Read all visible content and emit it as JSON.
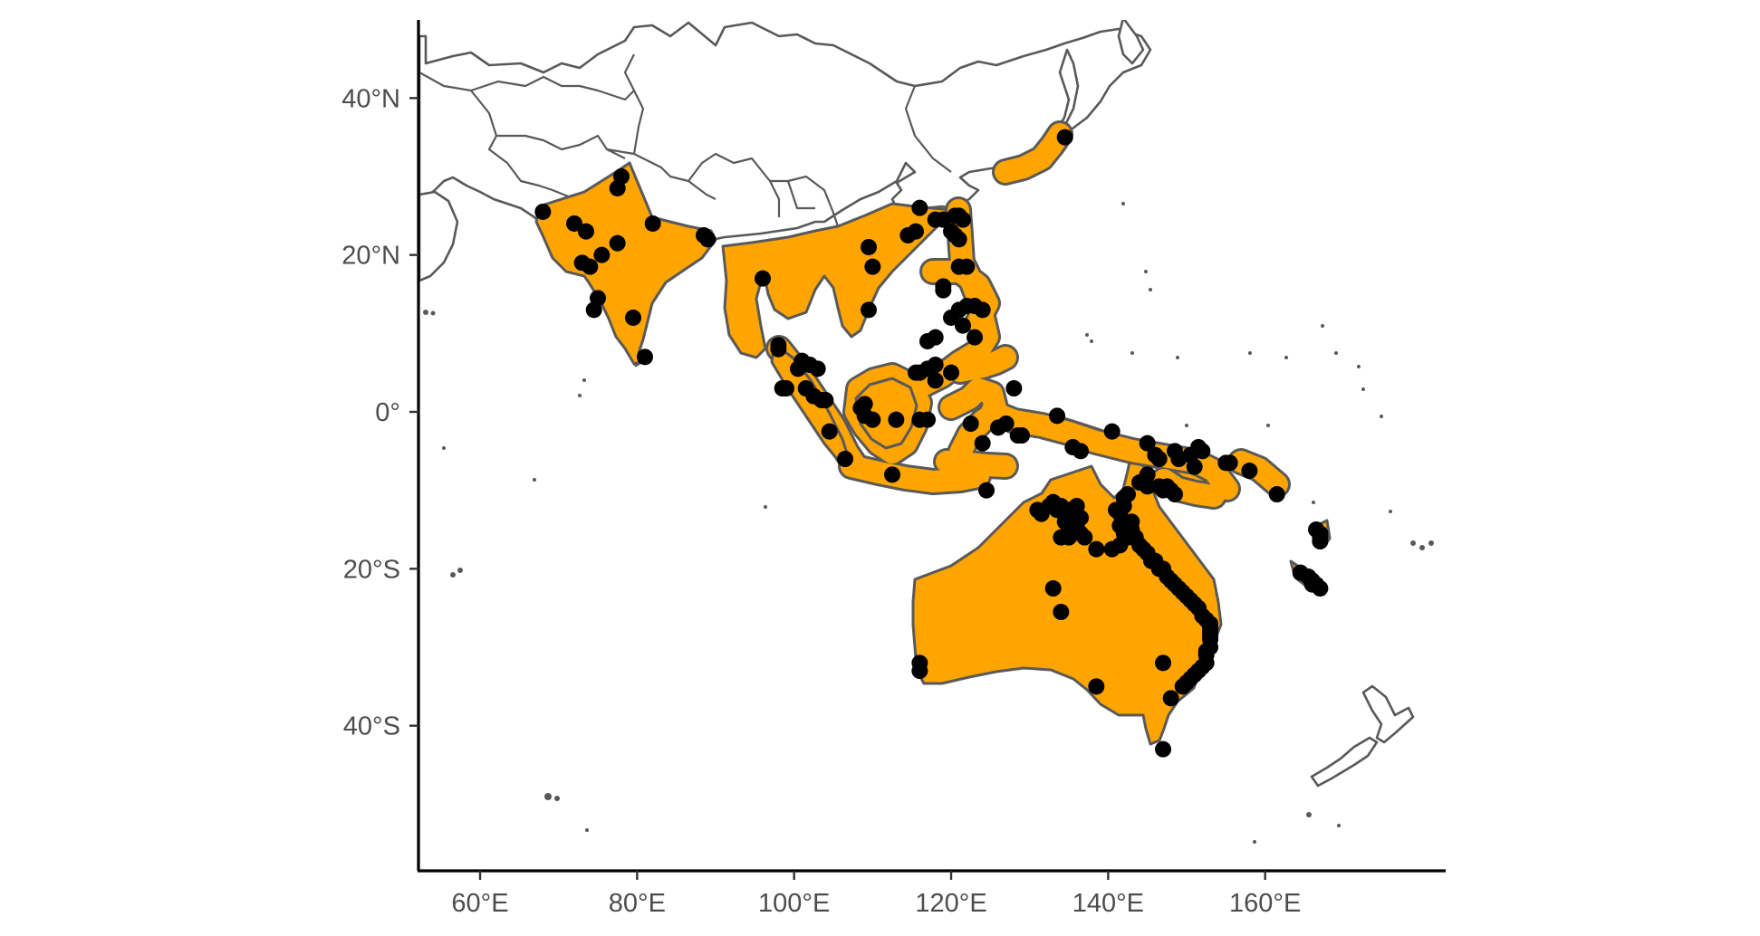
{
  "map": {
    "type": "species-range-map",
    "x_axis": {
      "ticks": [
        {
          "lon": 60,
          "label": "60°E"
        },
        {
          "lon": 80,
          "label": "80°E"
        },
        {
          "lon": 100,
          "label": "100°E"
        },
        {
          "lon": 120,
          "label": "120°E"
        },
        {
          "lon": 140,
          "label": "140°E"
        },
        {
          "lon": 160,
          "label": "160°E"
        }
      ],
      "range": [
        52.5,
        180
      ]
    },
    "y_axis": {
      "ticks": [
        {
          "lat": 40,
          "label": "40°N"
        },
        {
          "lat": 20,
          "label": "20°N"
        },
        {
          "lat": 0,
          "label": "0°"
        },
        {
          "lat": -20,
          "label": "20°S"
        },
        {
          "lat": -40,
          "label": "40°S"
        }
      ],
      "range": [
        -58,
        50
      ]
    },
    "colors": {
      "range_fill": "#FFA500",
      "outline": "#595959",
      "points": "#000000",
      "land": "#FFFFFF"
    },
    "occurrences": [
      [
        68,
        25.5
      ],
      [
        72,
        24
      ],
      [
        73.5,
        23
      ],
      [
        77.5,
        28.5
      ],
      [
        78,
        30
      ],
      [
        77.5,
        21.5
      ],
      [
        75.5,
        20
      ],
      [
        73,
        19
      ],
      [
        74,
        18.5
      ],
      [
        75,
        14.5
      ],
      [
        74.5,
        13
      ],
      [
        79.5,
        12
      ],
      [
        81,
        7
      ],
      [
        82,
        24
      ],
      [
        88.5,
        22.5
      ],
      [
        89,
        22
      ],
      [
        96,
        17
      ],
      [
        109.5,
        21
      ],
      [
        110,
        18.5
      ],
      [
        109.5,
        13
      ],
      [
        114.5,
        22.5
      ],
      [
        115.5,
        23
      ],
      [
        116,
        26
      ],
      [
        118,
        24.5
      ],
      [
        119,
        24.5
      ],
      [
        120,
        23
      ],
      [
        120.5,
        25
      ],
      [
        121,
        25
      ],
      [
        121.5,
        24.5
      ],
      [
        120.5,
        22.5
      ],
      [
        121,
        22
      ],
      [
        121,
        18.5
      ],
      [
        122,
        18.5
      ],
      [
        119,
        16
      ],
      [
        119,
        15.5
      ],
      [
        121,
        13
      ],
      [
        122,
        13.5
      ],
      [
        123,
        13.5
      ],
      [
        124,
        13
      ],
      [
        120,
        12
      ],
      [
        121.5,
        11
      ],
      [
        123,
        9.5
      ],
      [
        117,
        9
      ],
      [
        118,
        9.5
      ],
      [
        118,
        6
      ],
      [
        117,
        5.5
      ],
      [
        115.5,
        5
      ],
      [
        116,
        5
      ],
      [
        118,
        4
      ],
      [
        120,
        5
      ],
      [
        134.5,
        35
      ],
      [
        98,
        8.5
      ],
      [
        98,
        8
      ],
      [
        101,
        6.5
      ],
      [
        102,
        6
      ],
      [
        103,
        5.5
      ],
      [
        100.5,
        5.5
      ],
      [
        101.5,
        3
      ],
      [
        98.5,
        3
      ],
      [
        99,
        3
      ],
      [
        102.5,
        2
      ],
      [
        103.5,
        1.5
      ],
      [
        104,
        1.5
      ],
      [
        108.5,
        0.5
      ],
      [
        109,
        1
      ],
      [
        110,
        -1
      ],
      [
        109,
        -0.5
      ],
      [
        113,
        -1
      ],
      [
        116,
        -1
      ],
      [
        117,
        -1
      ],
      [
        104.5,
        -2.5
      ],
      [
        106.5,
        -6
      ],
      [
        112.5,
        -8
      ],
      [
        122.5,
        -1.5
      ],
      [
        124.5,
        -10
      ],
      [
        128,
        3
      ],
      [
        129,
        -3
      ],
      [
        128.5,
        -3
      ],
      [
        126,
        -2
      ],
      [
        124,
        -4
      ],
      [
        127,
        -1.5
      ],
      [
        133.5,
        -0.5
      ],
      [
        136.5,
        -5
      ],
      [
        135.5,
        -4.5
      ],
      [
        140.5,
        -2.5
      ],
      [
        145,
        -4
      ],
      [
        146,
        -5.5
      ],
      [
        146.5,
        -6
      ],
      [
        149,
        -6
      ],
      [
        148.5,
        -5
      ],
      [
        150.5,
        -5.5
      ],
      [
        151.5,
        -4.5
      ],
      [
        152,
        -5
      ],
      [
        145,
        -8
      ],
      [
        144,
        -9
      ],
      [
        146.5,
        -9.5
      ],
      [
        147.5,
        -9.5
      ],
      [
        148,
        -10
      ],
      [
        148.5,
        -10.5
      ],
      [
        147,
        -10
      ],
      [
        151,
        -7
      ],
      [
        155,
        -6.5
      ],
      [
        155.5,
        -6.5
      ],
      [
        158,
        -7.5
      ],
      [
        161.5,
        -10.5
      ],
      [
        131,
        -12.5
      ],
      [
        131.5,
        -13
      ],
      [
        132.5,
        -12
      ],
      [
        133,
        -11.5
      ],
      [
        134,
        -12
      ],
      [
        133.5,
        -12.5
      ],
      [
        135,
        -12.5
      ],
      [
        136,
        -12
      ],
      [
        135.5,
        -13.5
      ],
      [
        136.5,
        -13.5
      ],
      [
        134.5,
        -14
      ],
      [
        135,
        -15
      ],
      [
        134,
        -16
      ],
      [
        135,
        -16
      ],
      [
        137,
        -16
      ],
      [
        136,
        -14.5
      ],
      [
        136.5,
        -15.5
      ],
      [
        140.5,
        -17.5
      ],
      [
        141.5,
        -17
      ],
      [
        138.5,
        -17.5
      ],
      [
        141,
        -12.5
      ],
      [
        141.5,
        -13
      ],
      [
        142,
        -11
      ],
      [
        142.5,
        -10.5
      ],
      [
        142,
        -12
      ],
      [
        141.5,
        -14.5
      ],
      [
        142,
        -15.5
      ],
      [
        142.5,
        -16
      ],
      [
        143,
        -14
      ],
      [
        143,
        -15
      ],
      [
        143.5,
        -16
      ],
      [
        144,
        -17
      ],
      [
        144.5,
        -17.5
      ],
      [
        145,
        -18
      ],
      [
        145.5,
        -19
      ],
      [
        146,
        -19
      ],
      [
        146.5,
        -20
      ],
      [
        147,
        -20
      ],
      [
        147.5,
        -21
      ],
      [
        148,
        -21.5
      ],
      [
        148.5,
        -22
      ],
      [
        149,
        -22.5
      ],
      [
        149.5,
        -23
      ],
      [
        150,
        -23.5
      ],
      [
        150.5,
        -24
      ],
      [
        151,
        -24.5
      ],
      [
        151.5,
        -25
      ],
      [
        152,
        -26
      ],
      [
        152.5,
        -26.5
      ],
      [
        153,
        -27
      ],
      [
        153,
        -27.5
      ],
      [
        153,
        -28
      ],
      [
        153,
        -28.5
      ],
      [
        153,
        -29
      ],
      [
        153,
        -30
      ],
      [
        152.5,
        -30.5
      ],
      [
        152.5,
        -31
      ],
      [
        152.5,
        -32
      ],
      [
        152,
        -32.5
      ],
      [
        151.5,
        -33
      ],
      [
        151,
        -33.5
      ],
      [
        150.5,
        -34
      ],
      [
        150,
        -34.5
      ],
      [
        149.5,
        -35
      ],
      [
        148,
        -36.5
      ],
      [
        147,
        -32
      ],
      [
        147,
        -43
      ],
      [
        138.5,
        -35
      ],
      [
        133,
        -22.5
      ],
      [
        134,
        -25.5
      ],
      [
        116,
        -32
      ],
      [
        116,
        -33
      ],
      [
        145,
        -9.5
      ],
      [
        167,
        -15.5
      ],
      [
        167,
        -16
      ],
      [
        167,
        -16.5
      ],
      [
        166.5,
        -15
      ],
      [
        164.5,
        -20.5
      ],
      [
        165.5,
        -21
      ],
      [
        166,
        -21.5
      ],
      [
        166.5,
        -22
      ],
      [
        167,
        -22.5
      ],
      [
        166,
        -22
      ]
    ]
  }
}
